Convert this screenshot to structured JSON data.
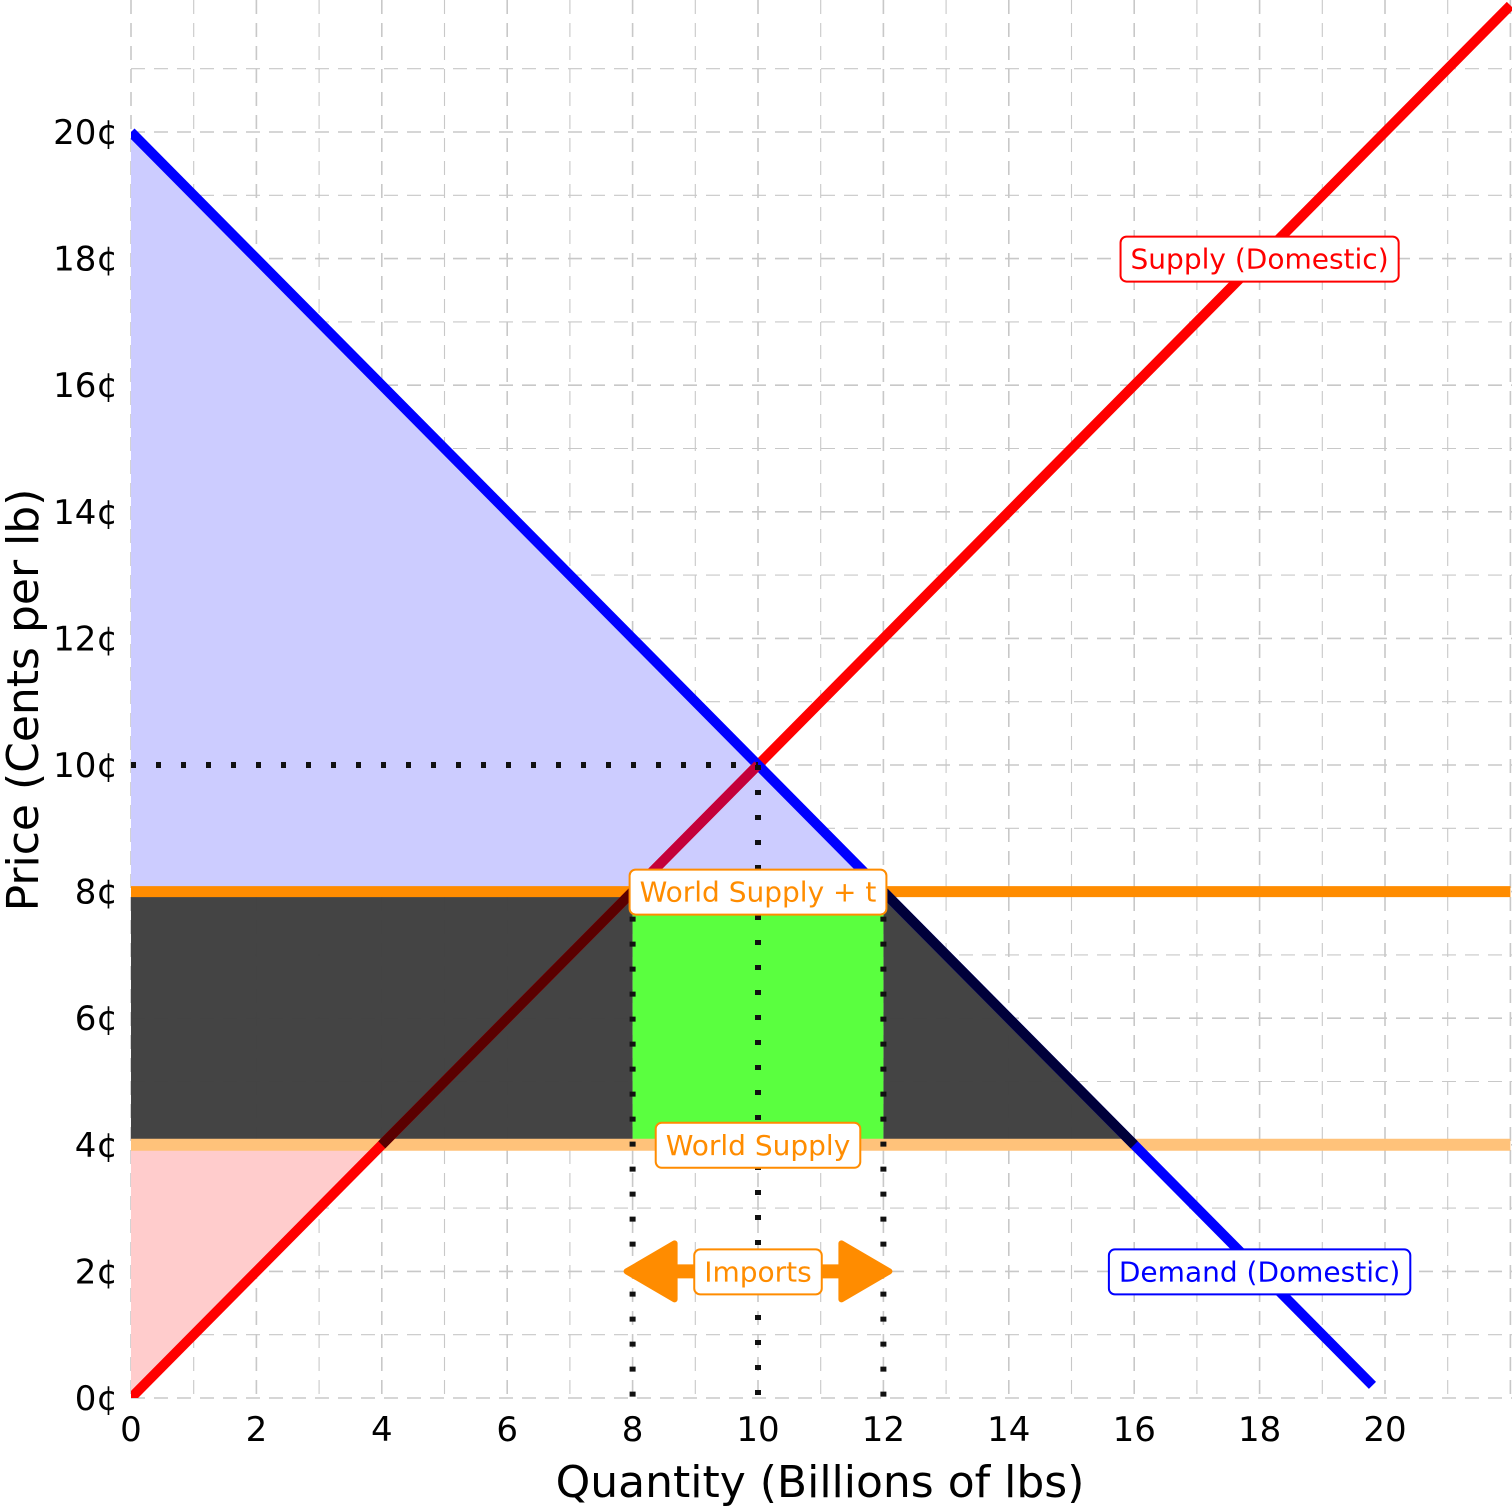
{
  "chart_data": {
    "type": "line",
    "xlabel": "Quantity (Billions of lbs)",
    "ylabel": "Price (Cents per lb)",
    "xlim": [
      0,
      22
    ],
    "ylim": [
      0,
      20
    ],
    "x_ticks": [
      0,
      2,
      4,
      6,
      8,
      10,
      12,
      14,
      16,
      18,
      20
    ],
    "x_tick_labels": [
      "0",
      "2",
      "4",
      "6",
      "8",
      "10",
      "12",
      "14",
      "16",
      "18",
      "20"
    ],
    "y_ticks": [
      0,
      2,
      4,
      6,
      8,
      10,
      12,
      14,
      16,
      18,
      20
    ],
    "y_tick_labels": [
      "0¢",
      "2¢",
      "4¢",
      "6¢",
      "8¢",
      "10¢",
      "12¢",
      "14¢",
      "16¢",
      "18¢",
      "20¢"
    ],
    "grid": true,
    "series": [
      {
        "name": "Supply (Domestic)",
        "color": "#ff0000",
        "points": [
          [
            0,
            0
          ],
          [
            22,
            22
          ]
        ]
      },
      {
        "name": "Demand (Domestic)",
        "color": "#0000ff",
        "points": [
          [
            0,
            20
          ],
          [
            19.8,
            0.2
          ]
        ]
      },
      {
        "name": "World Supply + t",
        "color": "#ff8c00",
        "points": [
          [
            0,
            8
          ],
          [
            22,
            8
          ]
        ]
      },
      {
        "name": "World Supply",
        "color": "#ffc27a",
        "points": [
          [
            0,
            4
          ],
          [
            22,
            4
          ]
        ]
      }
    ],
    "areas": [
      {
        "id": "consumer-surplus",
        "color": "#ccccff",
        "points": [
          [
            0,
            20
          ],
          [
            12,
            8
          ],
          [
            0,
            8
          ]
        ]
      },
      {
        "id": "producer-surplus",
        "color": "#ffcccc",
        "points": [
          [
            0,
            0
          ],
          [
            4,
            4
          ],
          [
            0,
            4
          ]
        ]
      },
      {
        "id": "deadweight-loss",
        "color": "#404040",
        "points": [
          [
            0,
            8
          ],
          [
            8,
            8
          ],
          [
            8,
            4
          ],
          [
            12,
            4
          ],
          [
            12,
            8
          ],
          [
            16,
            4
          ],
          [
            0,
            4
          ]
        ]
      },
      {
        "id": "tariff-revenue",
        "color": "#5aff3f",
        "points": [
          [
            8,
            8
          ],
          [
            12,
            8
          ],
          [
            12,
            4
          ],
          [
            8,
            4
          ]
        ]
      }
    ],
    "reference_lines": [
      {
        "from": [
          0,
          10
        ],
        "to": [
          10,
          10
        ]
      },
      {
        "from": [
          10,
          10
        ],
        "to": [
          10,
          0
        ]
      },
      {
        "from": [
          8,
          8
        ],
        "to": [
          8,
          0
        ]
      },
      {
        "from": [
          12,
          8
        ],
        "to": [
          12,
          0
        ]
      }
    ],
    "annotations": [
      {
        "text": "Supply (Domestic)",
        "x": 18,
        "y": 18,
        "color": "#ff0000"
      },
      {
        "text": "Demand (Domestic)",
        "x": 18,
        "y": 2,
        "color": "#0000ff"
      },
      {
        "text": "World Supply + t",
        "x": 10,
        "y": 8,
        "color": "#ff8c00"
      },
      {
        "text": "World Supply",
        "x": 10,
        "y": 4,
        "color": "#ff8c00"
      },
      {
        "text": "Imports",
        "x": 10,
        "y": 2,
        "color": "#ff8c00"
      }
    ],
    "arrow": {
      "from": [
        8,
        2
      ],
      "to": [
        12,
        2
      ],
      "color": "#ff8c00"
    }
  }
}
